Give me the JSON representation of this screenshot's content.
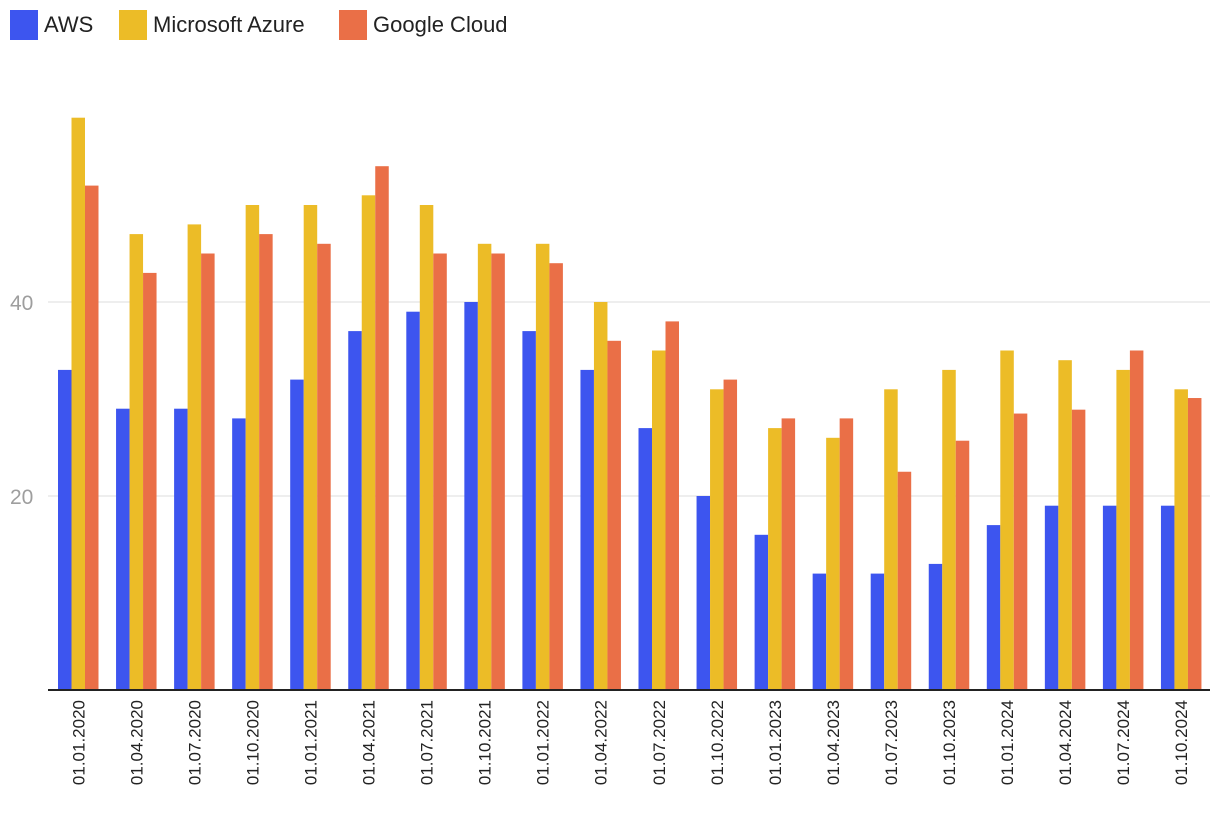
{
  "chart_data": {
    "type": "bar",
    "categories": [
      "01.01.2020",
      "01.04.2020",
      "01.07.2020",
      "01.10.2020",
      "01.01.2021",
      "01.04.2021",
      "01.07.2021",
      "01.10.2021",
      "01.01.2022",
      "01.04.2022",
      "01.07.2022",
      "01.10.2022",
      "01.01.2023",
      "01.04.2023",
      "01.07.2023",
      "01.10.2023",
      "01.01.2024",
      "01.04.2024",
      "01.07.2024",
      "01.10.2024"
    ],
    "series": [
      {
        "name": "AWS",
        "color": "#3d55ef",
        "values": [
          33,
          29,
          29,
          28,
          32,
          37,
          39,
          40,
          37,
          33,
          27,
          20,
          16,
          12,
          12,
          13,
          17,
          19,
          19,
          19
        ]
      },
      {
        "name": "Microsoft Azure",
        "color": "#ecbc27",
        "values": [
          59,
          47,
          48,
          50,
          50,
          51,
          50,
          46,
          46,
          40,
          35,
          31,
          27,
          26,
          31,
          33,
          35,
          34,
          33,
          31
        ]
      },
      {
        "name": "Google Cloud",
        "color": "#ea6f47",
        "values": [
          52,
          43,
          45,
          47,
          46,
          54,
          45,
          45,
          44,
          36,
          38,
          32,
          28,
          28,
          22.5,
          25.7,
          28.5,
          28.9,
          35,
          30.1
        ]
      }
    ],
    "y_ticks": [
      20,
      40
    ],
    "ylim": [
      0,
      60
    ],
    "grid": true,
    "legend_position": "top-left",
    "title": "",
    "xlabel": "",
    "ylabel": ""
  }
}
